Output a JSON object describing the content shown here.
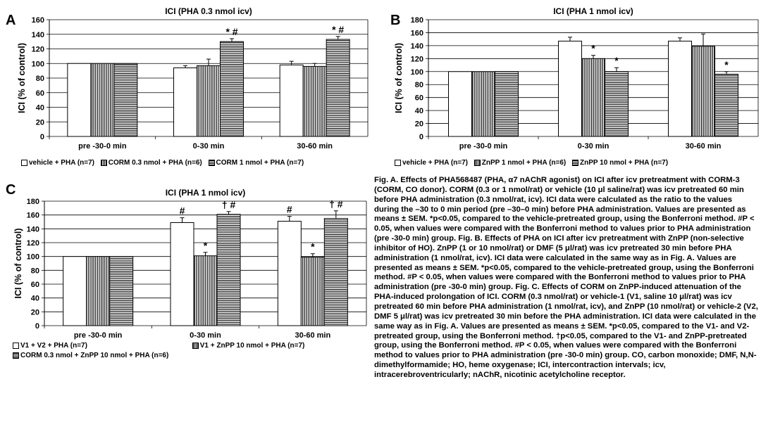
{
  "chart_data": [
    {
      "id": "A",
      "type": "bar",
      "title": "ICI (PHA 0.3 nmol icv)",
      "ylabel": "ICI (% of control)",
      "ylim": [
        0,
        160
      ],
      "yticks": [
        0,
        20,
        40,
        60,
        80,
        100,
        120,
        140,
        160
      ],
      "categories": [
        "pre -30-0 min",
        "0-30 min",
        "30-60 min"
      ],
      "series": [
        {
          "name": "vehicle + PHA (n=7)",
          "pattern": "white",
          "values": [
            100,
            94,
            98
          ],
          "errors": [
            0,
            3,
            5
          ]
        },
        {
          "name": "CORM 0.3 nmol + PHA (n=6)",
          "pattern": "vert",
          "values": [
            100,
            97,
            96
          ],
          "errors": [
            0,
            9,
            4
          ]
        },
        {
          "name": "CORM 1 nmol + PHA (n=7)",
          "pattern": "horiz",
          "values": [
            100,
            130,
            133
          ],
          "errors": [
            0,
            4,
            4
          ]
        }
      ],
      "annotations": [
        {
          "category": 1,
          "series": 2,
          "text": "* #"
        },
        {
          "category": 2,
          "series": 2,
          "text": "* #"
        }
      ]
    },
    {
      "id": "B",
      "type": "bar",
      "title": "ICI (PHA 1 nmol icv)",
      "ylabel": "ICI (% of control)",
      "ylim": [
        0,
        180
      ],
      "yticks": [
        0,
        20,
        40,
        60,
        80,
        100,
        120,
        140,
        160,
        180
      ],
      "categories": [
        "pre -30-0 min",
        "0-30 min",
        "30-60 min"
      ],
      "series": [
        {
          "name": "vehicle + PHA (n=7)",
          "pattern": "white",
          "values": [
            100,
            147,
            147
          ],
          "errors": [
            0,
            6,
            5
          ]
        },
        {
          "name": "ZnPP 1 nmol + PHA (n=6)",
          "pattern": "vert",
          "values": [
            100,
            120,
            139
          ],
          "errors": [
            0,
            5,
            19
          ]
        },
        {
          "name": "ZnPP 10 nmol + PHA (n=7)",
          "pattern": "horiz",
          "values": [
            100,
            100,
            96
          ],
          "errors": [
            0,
            6,
            4
          ]
        }
      ],
      "annotations": [
        {
          "category": 1,
          "series": 1,
          "text": "*"
        },
        {
          "category": 1,
          "series": 2,
          "text": "*"
        },
        {
          "category": 2,
          "series": 2,
          "text": "*"
        }
      ]
    },
    {
      "id": "C",
      "type": "bar",
      "title": "ICI (PHA 1 nmol icv)",
      "ylabel": "ICI (% of control)",
      "ylim": [
        0,
        180
      ],
      "yticks": [
        0,
        20,
        40,
        60,
        80,
        100,
        120,
        140,
        160,
        180
      ],
      "categories": [
        "pre -30-0 min",
        "0-30 min",
        "30-60 min"
      ],
      "series": [
        {
          "name": "V1 + V2 + PHA (n=7)",
          "pattern": "white",
          "values": [
            100,
            149,
            151
          ],
          "errors": [
            0,
            7,
            7
          ]
        },
        {
          "name": "V1 + ZnPP 10 nmol + PHA (n=7)",
          "pattern": "vert",
          "values": [
            100,
            101,
            99
          ],
          "errors": [
            0,
            5,
            5
          ]
        },
        {
          "name": "CORM 0.3 nmol + ZnPP 10 nmol + PHA (n=6)",
          "pattern": "horiz",
          "values": [
            100,
            161,
            155
          ],
          "errors": [
            0,
            4,
            11
          ]
        }
      ],
      "annotations": [
        {
          "category": 1,
          "series": 0,
          "text": "#"
        },
        {
          "category": 1,
          "series": 1,
          "text": "*"
        },
        {
          "category": 1,
          "series": 2,
          "text": "† #"
        },
        {
          "category": 2,
          "series": 0,
          "text": "#"
        },
        {
          "category": 2,
          "series": 1,
          "text": "*"
        },
        {
          "category": 2,
          "series": 2,
          "text": "† #"
        }
      ]
    }
  ],
  "caption": "Fig. A. Effects of PHA568487 (PHA, α7 nAChR agonist) on ICI after icv pretreatment with CORM-3 (CORM, CO donor). CORM (0.3 or 1 nmol/rat) or vehicle (10 μl saline/rat) was icv pretreated 60 min before PHA administration (0.3 nmol/rat, icv). ICI data were calculated as the ratio to the values during the –30 to 0 min period (pre –30–0 min) before PHA administration. Values are presented as means ± SEM. *p<0.05, compared to the vehicle-pretreated group, using the Bonferroni method. #P < 0.05, when values were compared with the Bonferroni method to values prior to PHA administration (pre -30-0 min) group. Fig. B. Effects of PHA on ICI after icv pretreatment with ZnPP (non-selective inhibitor of HO). ZnPP (1 or 10 nmol/rat) or DMF (5 μl/rat) was icv pretreated 30 min before PHA administration (1 nmol/rat, icv). ICI data were calculated in the same way as in Fig. A. Values are presented as means ± SEM. *p<0.05, compared to the vehicle-pretreated group, using the Bonferroni method. #P < 0.05, when values were compared with the Bonferroni method to values prior to PHA administration (pre -30-0 min) group. Fig. C. Effects of CORM on ZnPP-induced attenuation of the PHA-induced prolongation of ICI. CORM (0.3 nmol/rat) or vehicle-1 (V1, saline 10 μl/rat) was icv pretreated 60 min before PHA administration (1 nmol/rat, icv), and ZnPP (10 nmol/rat) or vehicle-2 (V2, DMF 5 μl/rat) was icv pretreated 30 min before the PHA administration. ICI data were calculated in the same way as in Fig. A. Values are presented as means ± SEM. *p<0.05, compared to the V1- and V2-pretreated group, using the Bonferroni method. †p<0.05, compared to the V1- and ZnPP-pretreated group, using the Bonferroni method. #P < 0.05, when values were compared with the Bonferroni method to values prior to PHA administration (pre -30-0 min) group. CO, carbon monoxide; DMF, N,N-dimethylformamide; HO, heme oxygenase; ICI, intercontraction intervals; icv, intracerebroventricularly; nAChR, nicotinic acetylcholine receptor."
}
